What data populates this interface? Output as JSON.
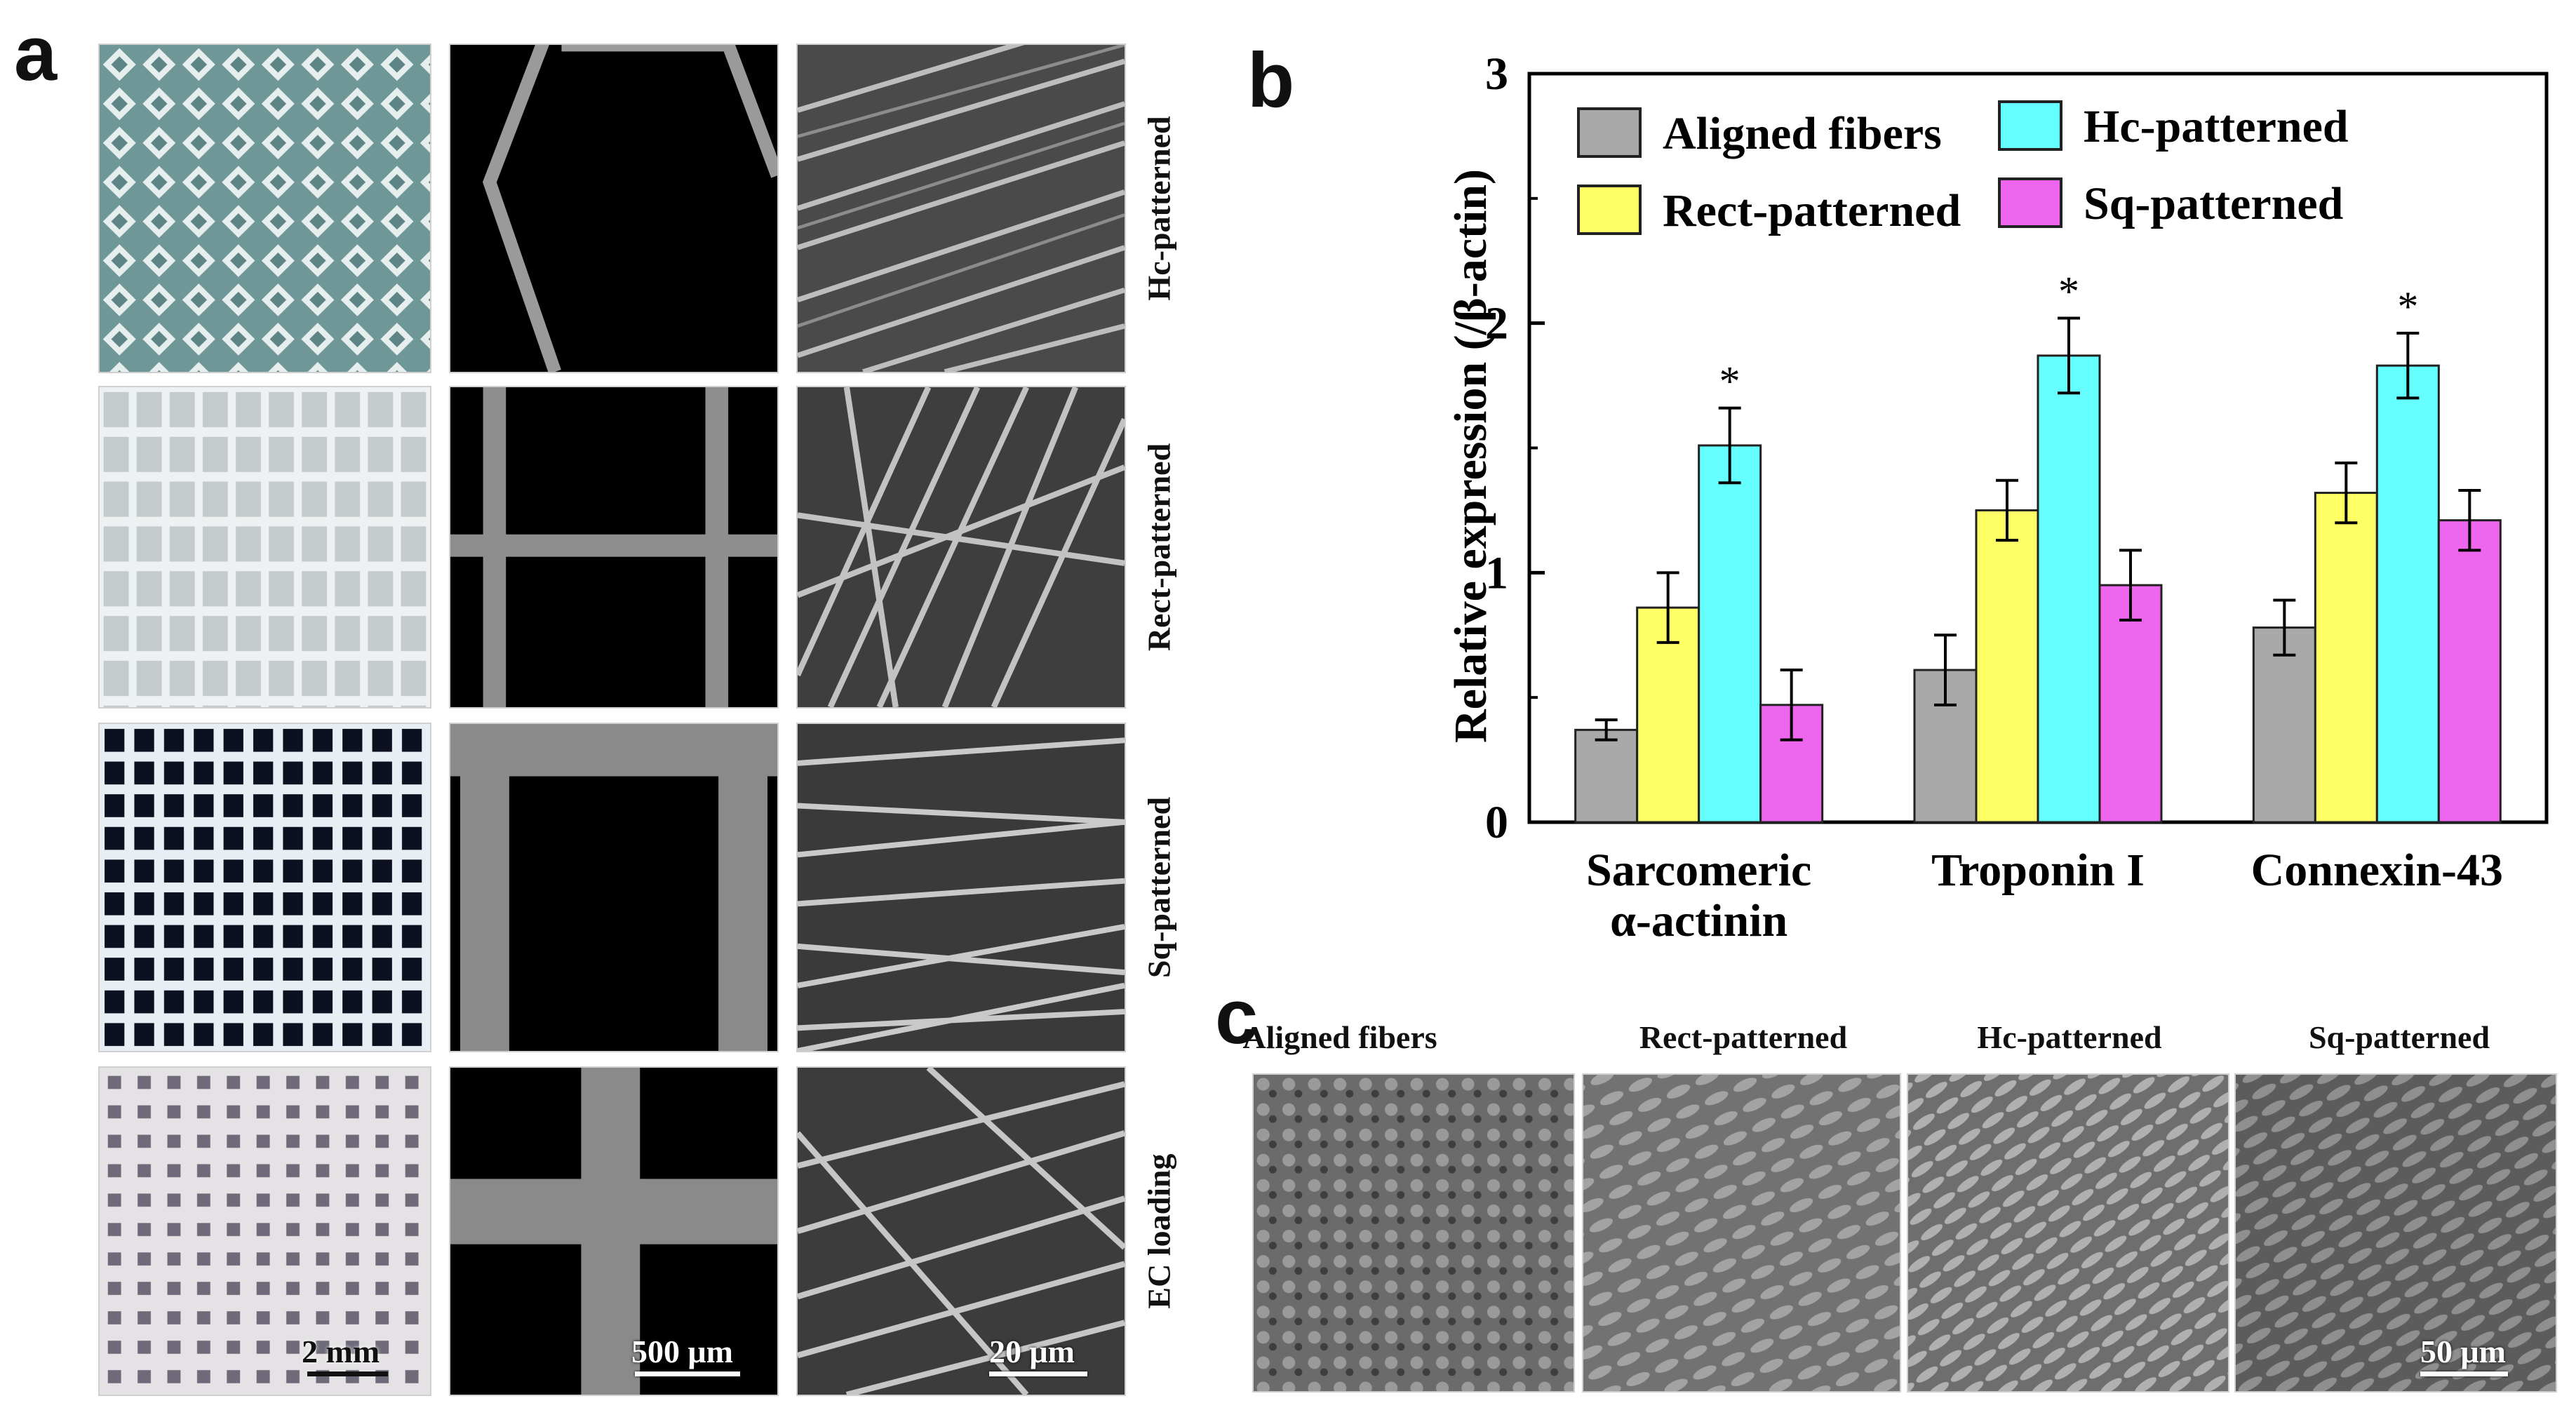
{
  "panels": {
    "a": "a",
    "b": "b",
    "c": "c"
  },
  "panel_a": {
    "row_labels": [
      "Hc-patterned",
      "Rect-patterned",
      "Sq-patterned",
      "EC loading"
    ],
    "scale_bars": [
      "2 mm",
      "500 μm",
      "20 μm"
    ]
  },
  "panel_c": {
    "labels": [
      "Aligned fibers",
      "Rect-patterned",
      "Hc-patterned",
      "Sq-patterned"
    ],
    "scale_bar": "50 μm"
  },
  "colors": {
    "aligned": "#a9a9a9",
    "rect": "#ffff66",
    "hc": "#66ffff",
    "sq": "#ee66ee"
  },
  "chart_data": {
    "type": "bar",
    "ylabel": "Relative expression (/β-actin)",
    "ylim": [
      0,
      3
    ],
    "yticks": [
      "0",
      "1",
      "2",
      "3"
    ],
    "categories": [
      [
        "Sarcomeric",
        "α-actinin"
      ],
      [
        "Troponin I"
      ],
      [
        "Connexin-43"
      ]
    ],
    "series": [
      {
        "name": "Aligned fibers",
        "color": "#a9a9a9",
        "values": [
          0.37,
          0.61,
          0.78
        ],
        "errors": [
          0.04,
          0.14,
          0.11
        ]
      },
      {
        "name": "Rect-patterned",
        "color": "#ffff66",
        "values": [
          0.86,
          1.25,
          1.32
        ],
        "errors": [
          0.14,
          0.12,
          0.12
        ]
      },
      {
        "name": "Hc-patterned",
        "color": "#66ffff",
        "values": [
          1.51,
          1.87,
          1.83
        ],
        "errors": [
          0.15,
          0.15,
          0.13
        ]
      },
      {
        "name": "Sq-patterned",
        "color": "#ee66ee",
        "values": [
          0.47,
          0.95,
          1.21
        ],
        "errors": [
          0.14,
          0.14,
          0.12
        ]
      }
    ],
    "significance_marker": "*",
    "significant_series": "Hc-patterned",
    "legend_position": "top"
  }
}
